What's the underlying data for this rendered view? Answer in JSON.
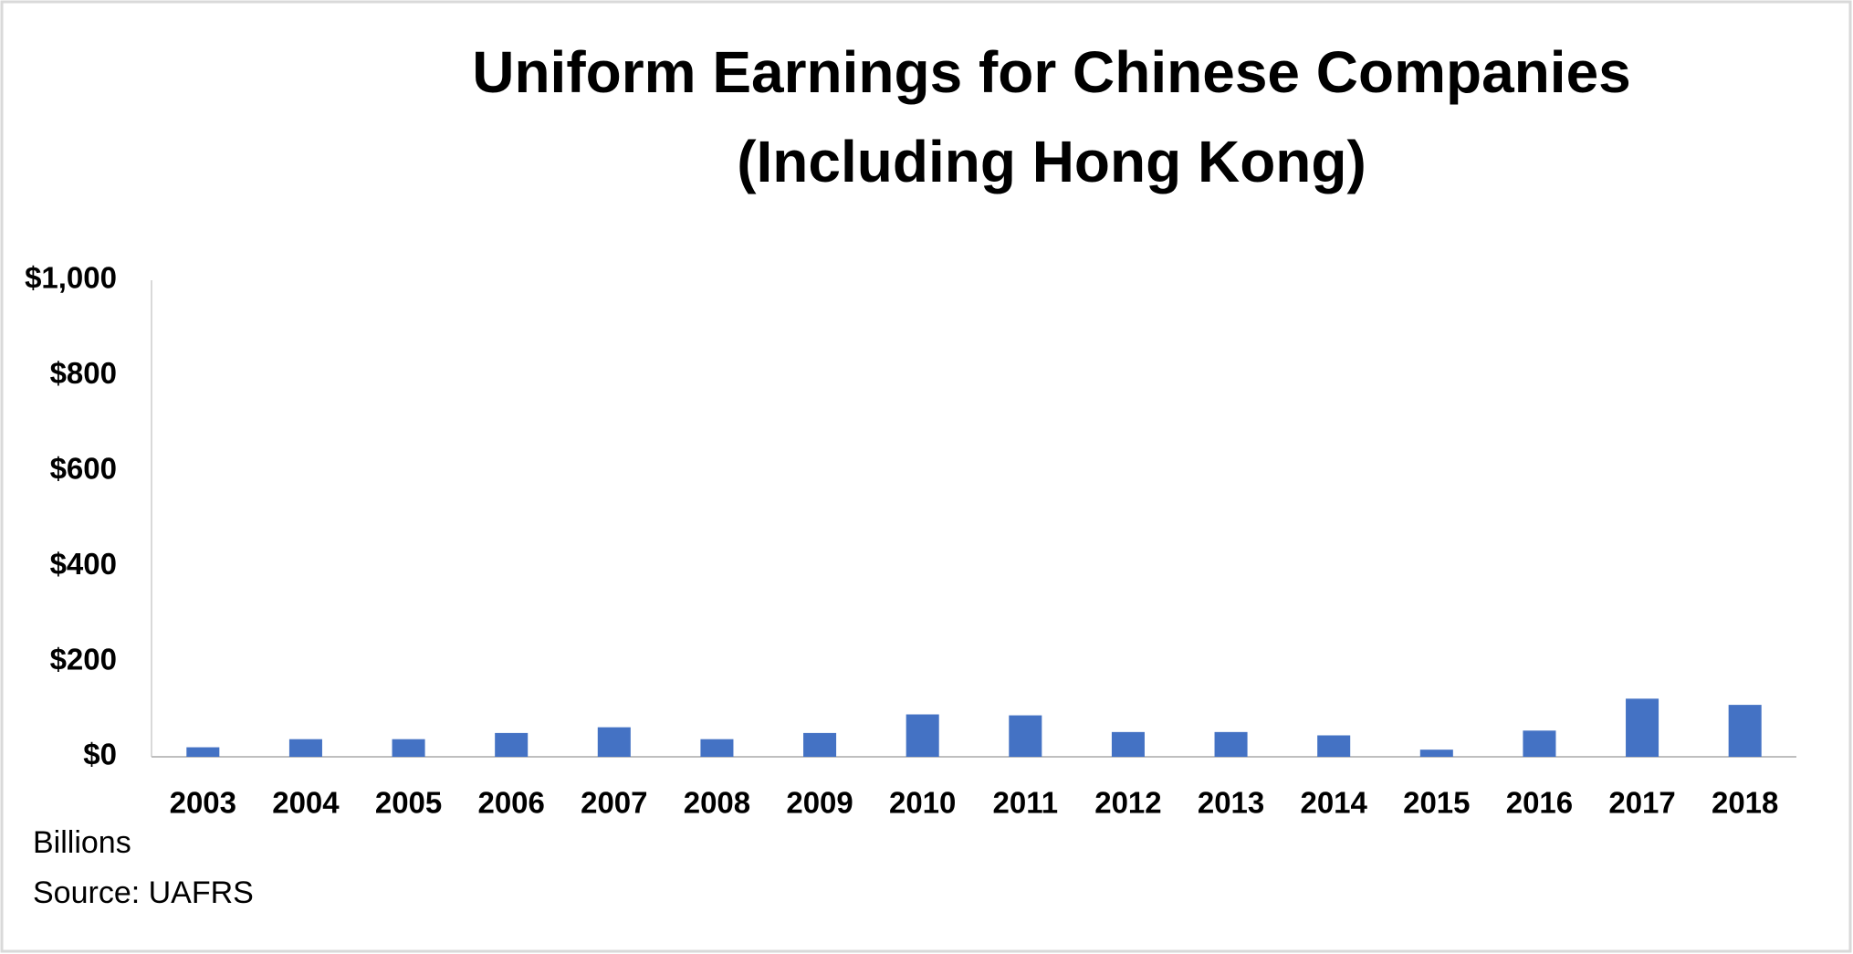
{
  "chart_data": {
    "type": "bar",
    "title": [
      "Uniform Earnings for Chinese Companies",
      "(Including Hong Kong)"
    ],
    "categories": [
      "2003",
      "2004",
      "2005",
      "2006",
      "2007",
      "2008",
      "2009",
      "2010",
      "2011",
      "2012",
      "2013",
      "2014",
      "2015",
      "2016",
      "2017",
      "2018"
    ],
    "values": [
      20,
      37,
      37,
      50,
      62,
      37,
      50,
      89,
      87,
      52,
      52,
      45,
      15,
      55,
      122,
      109
    ],
    "color": "#4472c4",
    "ylim": [
      0,
      1000
    ],
    "yticks": [
      {
        "value": 0,
        "label": "$0"
      },
      {
        "value": 200,
        "label": "$200"
      },
      {
        "value": 400,
        "label": "$400"
      },
      {
        "value": 600,
        "label": "$600"
      },
      {
        "value": 800,
        "label": "$800"
      },
      {
        "value": 1000,
        "label": "$1,000"
      }
    ],
    "grid": false,
    "annotations": [
      "Billions",
      "Source: UAFRS"
    ]
  }
}
